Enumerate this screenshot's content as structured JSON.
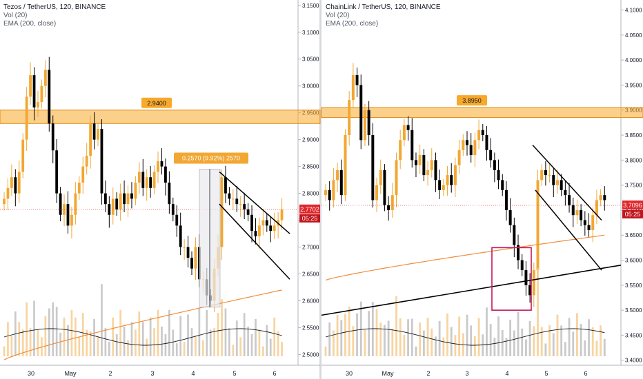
{
  "panels": [
    {
      "legend": {
        "title": "Tezos / TetherUS, 120, BINANCE",
        "vol": "Vol (20)",
        "ema": "EMA (200, close)"
      },
      "x_ticks": [
        "30",
        "May",
        "2",
        "3",
        "4",
        "5",
        "6"
      ],
      "y_ticks": [
        "3.1500",
        "3.1000",
        "3.0500",
        "3.0000",
        "2.9500",
        "2.9000",
        "2.8500",
        "2.8000",
        "2.7500",
        "2.7000",
        "2.6500",
        "2.6000",
        "2.5500",
        "2.5000"
      ],
      "zone_label": "2.9400",
      "measure_label": "0.2570 (9.92%) 2570",
      "price_tag": "2.7702",
      "time_tag": "05:25",
      "colors": {
        "zone": "#f7a92b",
        "price_tag": "#e1262b",
        "measure": "#f2a732"
      }
    },
    {
      "legend": {
        "title": "ChainLink / TetherUS, 120, BINANCE",
        "vol": "Vol (20)",
        "ema": "EMA (200, close)"
      },
      "x_ticks": [
        "30",
        "May",
        "2",
        "3",
        "4",
        "5",
        "6"
      ],
      "y_ticks": [
        "4.1000",
        "4.0500",
        "4.0000",
        "3.9500",
        "3.9000",
        "3.8500",
        "3.8000",
        "3.7500",
        "3.7000",
        "3.6500",
        "3.6000",
        "3.5500",
        "3.5000",
        "3.4500",
        "3.4000"
      ],
      "zone_label": "3.8950",
      "price_tag": "3.7096",
      "time_tag": "05:25",
      "colors": {
        "zone": "#f7a92b",
        "price_tag": "#e1262b",
        "box": "#c2185b"
      }
    }
  ],
  "chart_data": [
    {
      "type": "candlestick",
      "symbol": "Tezos / TetherUS",
      "interval": "120",
      "ylim": [
        2.48,
        3.16
      ],
      "resistance_zone": [
        2.93,
        2.955
      ],
      "current_price": 2.7702,
      "close_series": [
        2.79,
        2.81,
        2.83,
        2.8,
        2.84,
        2.9,
        2.98,
        3.02,
        2.96,
        2.97,
        3.0,
        3.03,
        2.93,
        2.88,
        2.8,
        2.76,
        2.78,
        2.74,
        2.76,
        2.8,
        2.82,
        2.85,
        2.87,
        2.93,
        2.9,
        2.92,
        2.8,
        2.78,
        2.76,
        2.79,
        2.77,
        2.8,
        2.78,
        2.8,
        2.79,
        2.82,
        2.84,
        2.81,
        2.83,
        2.81,
        2.84,
        2.86,
        2.85,
        2.82,
        2.78,
        2.76,
        2.74,
        2.7,
        2.7,
        2.68,
        2.66,
        2.7,
        2.64,
        2.64,
        2.61,
        2.6,
        2.66,
        2.7,
        2.83,
        2.8,
        2.79,
        2.79,
        2.78,
        2.78,
        2.77,
        2.76,
        2.73,
        2.72,
        2.74,
        2.75,
        2.74,
        2.73,
        2.74,
        2.75,
        2.77
      ],
      "ema_range": [
        2.49,
        2.62
      ],
      "annotations": [
        "Measured move 0.2570 (9.92%)",
        "Descending channel"
      ]
    },
    {
      "type": "candlestick",
      "symbol": "ChainLink / TetherUS",
      "interval": "120",
      "ylim": [
        3.39,
        4.12
      ],
      "resistance_zone": [
        3.885,
        3.905
      ],
      "current_price": 3.7096,
      "close_series": [
        3.74,
        3.72,
        3.76,
        3.78,
        3.73,
        3.85,
        3.92,
        3.97,
        3.95,
        3.84,
        3.9,
        3.85,
        3.72,
        3.75,
        3.78,
        3.71,
        3.7,
        3.73,
        3.8,
        3.84,
        3.87,
        3.86,
        3.8,
        3.79,
        3.81,
        3.77,
        3.78,
        3.8,
        3.76,
        3.74,
        3.75,
        3.77,
        3.75,
        3.79,
        3.82,
        3.84,
        3.83,
        3.81,
        3.84,
        3.86,
        3.85,
        3.82,
        3.8,
        3.78,
        3.76,
        3.74,
        3.7,
        3.67,
        3.63,
        3.6,
        3.58,
        3.55,
        3.53,
        3.58,
        3.76,
        3.78,
        3.77,
        3.77,
        3.75,
        3.76,
        3.74,
        3.73,
        3.71,
        3.69,
        3.7,
        3.68,
        3.67,
        3.66,
        3.69,
        3.72,
        3.73,
        3.72
      ],
      "ema_range": [
        3.56,
        3.65
      ],
      "annotations": [
        "Descending channel",
        "Ascending trendline",
        "Support box"
      ]
    }
  ]
}
